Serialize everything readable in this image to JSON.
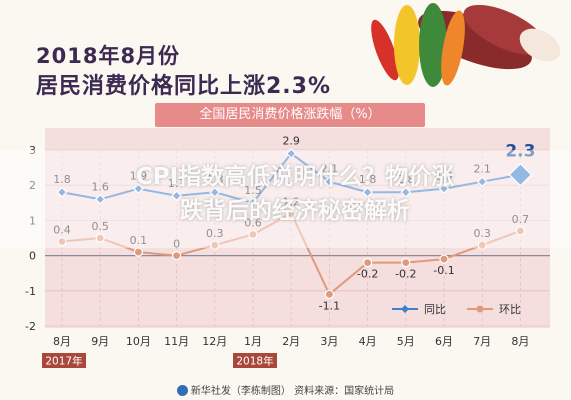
{
  "header": {
    "title_line1": "2018年8月份",
    "title_line2": "居民消费价格同比上涨2.3%",
    "subtitle": "全国居民消费价格涨跌幅（%）"
  },
  "overlay": {
    "line1": "CPI指数高低说明什么？物价涨",
    "line2": "跌背后的经济秘密解析"
  },
  "footer": {
    "source": "新华社发（李栋制图） 资料来源：国家统计局"
  },
  "colors": {
    "yoy": "#3f7fcc",
    "mom": "#e0997a",
    "plot_bg": "#f5dede",
    "title": "#3c2a52",
    "subtitle_bar": "#e78a8a"
  },
  "chart_data": {
    "type": "line",
    "title": "全国居民消费价格涨跌幅（%）",
    "categories": [
      "8月",
      "9月",
      "10月",
      "11月",
      "12月",
      "1月",
      "2月",
      "3月",
      "4月",
      "5月",
      "6月",
      "7月",
      "8月"
    ],
    "year_labels": [
      {
        "label": "2017年",
        "category_index": 0
      },
      {
        "label": "2018年",
        "category_index": 5
      }
    ],
    "ylim": [
      -2,
      3
    ],
    "yticks": [
      -2,
      -1,
      0,
      1,
      2,
      3
    ],
    "grid": true,
    "legend_position": "bottom-right",
    "series": [
      {
        "name": "同比",
        "values": [
          1.8,
          1.6,
          1.9,
          1.7,
          1.8,
          1.5,
          2.9,
          2.1,
          1.8,
          1.8,
          1.9,
          2.1,
          2.3
        ],
        "value_labels": [
          "1.8",
          "1.6",
          "1.9",
          "1.7",
          "1.8",
          "1.5",
          "2.9",
          "2.1",
          "1.8",
          "1.8",
          "1.9",
          "2.1",
          "2.3"
        ]
      },
      {
        "name": "环比",
        "values": [
          0.4,
          0.5,
          0.1,
          0.0,
          0.3,
          0.6,
          1.2,
          -1.1,
          -0.2,
          -0.2,
          -0.1,
          0.3,
          0.7
        ],
        "value_labels": [
          "0.4",
          "0.5",
          "0.1",
          "0",
          "0.3",
          "0.6",
          "1.2",
          "-1.1",
          "-0.2",
          "-0.2",
          "-0.1",
          "0.3",
          "0.7"
        ]
      }
    ]
  }
}
